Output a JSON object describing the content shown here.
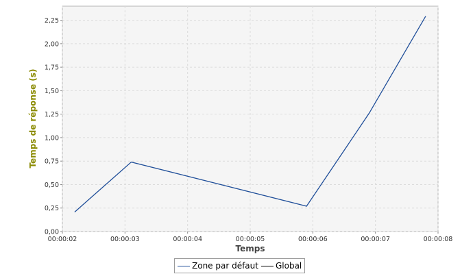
{
  "chart_data": {
    "type": "line",
    "title": "",
    "xlabel": "Temps",
    "ylabel": "Temps de réponse (s)",
    "x_ticks": [
      "00:00:02",
      "00:00:03",
      "00:00:04",
      "00:00:05",
      "00:00:06",
      "00:00:07",
      "00:00:08"
    ],
    "y_ticks": [
      "0,00",
      "0,25",
      "0,50",
      "0,75",
      "1,00",
      "1,25",
      "1,50",
      "1,75",
      "2,00",
      "2,25"
    ],
    "xlim": [
      "00:00:02",
      "00:00:08"
    ],
    "ylim": [
      0,
      2.4
    ],
    "grid": true,
    "legend_position": "bottom",
    "series": [
      {
        "name": "Zone par défaut",
        "color": "#1f4e99",
        "x": [
          "00:00:02.2",
          "00:00:03.1",
          "00:00:05.9",
          "00:00:06.9",
          "00:00:07.8"
        ],
        "y": [
          0.21,
          0.74,
          0.27,
          1.26,
          2.29
        ]
      },
      {
        "name": "Global",
        "color": "#000000",
        "x": [],
        "y": []
      }
    ]
  },
  "colors": {
    "ylabel": "#8a8a00",
    "xlabel": "#444444",
    "plot_bg": "#f5f5f5",
    "grid": "#dcdcdc"
  }
}
